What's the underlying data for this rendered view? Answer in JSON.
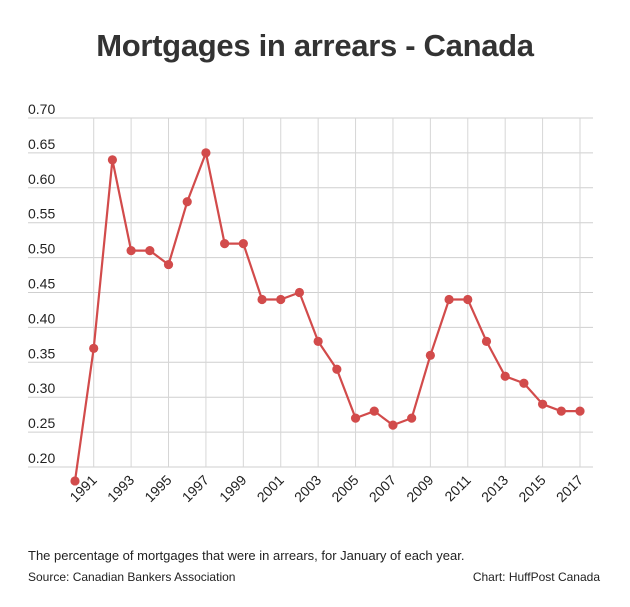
{
  "chart_data": {
    "type": "line",
    "title": "Mortgages in arrears - Canada",
    "xlabel": "",
    "ylabel": "",
    "caption": "The percentage of mortgages that were in arrears, for January of each year.",
    "source": "Source: Canadian Bankers Association",
    "credit": "Chart: HuffPost Canada",
    "ylim": [
      0.2,
      0.7
    ],
    "yticks": [
      "0.20",
      "0.25",
      "0.30",
      "0.35",
      "0.40",
      "0.45",
      "0.50",
      "0.55",
      "0.60",
      "0.65",
      "0.70"
    ],
    "xlim": [
      1990,
      2017
    ],
    "xticks": [
      "1991",
      "1993",
      "1995",
      "1997",
      "1999",
      "2001",
      "2003",
      "2005",
      "2007",
      "2009",
      "2011",
      "2013",
      "2015",
      "2017"
    ],
    "grid": true,
    "line_color": "#d24b4b",
    "x": [
      1990,
      1991,
      1992,
      1993,
      1994,
      1995,
      1996,
      1997,
      1998,
      1999,
      2000,
      2001,
      2002,
      2003,
      2004,
      2005,
      2006,
      2007,
      2008,
      2009,
      2010,
      2011,
      2012,
      2013,
      2014,
      2015,
      2016,
      2017
    ],
    "values": [
      0.18,
      0.37,
      0.64,
      0.51,
      0.51,
      0.49,
      0.58,
      0.65,
      0.52,
      0.52,
      0.44,
      0.44,
      0.45,
      0.38,
      0.34,
      0.27,
      0.28,
      0.26,
      0.27,
      0.36,
      0.44,
      0.44,
      0.38,
      0.33,
      0.32,
      0.29,
      0.28,
      0.28
    ]
  }
}
